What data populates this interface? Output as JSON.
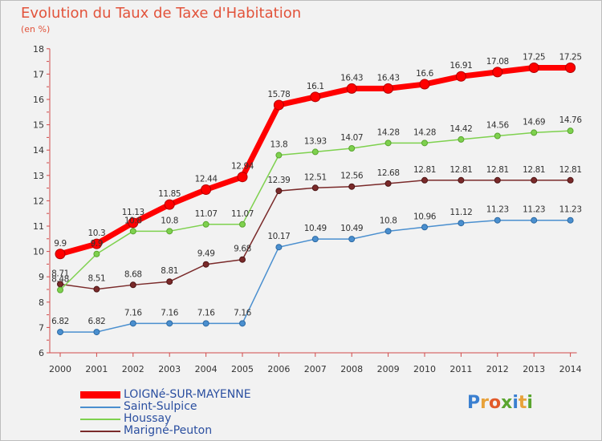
{
  "title": "Evolution du Taux de Taxe d'Habitation",
  "subtitle": "(en %)",
  "logo": "Proxiti",
  "chart_data": {
    "type": "line",
    "title": "Evolution du Taux de Taxe d'Habitation",
    "ylabel": "(en %)",
    "xlabel": "",
    "ylim": [
      6,
      18
    ],
    "yticks": [
      6,
      7,
      8,
      9,
      10,
      11,
      12,
      13,
      14,
      15,
      16,
      17,
      18
    ],
    "grid": false,
    "legend_position": "bottom-left",
    "x": [
      "2000",
      "2001",
      "2002",
      "2003",
      "2004",
      "2005",
      "2006",
      "2007",
      "2008",
      "2009",
      "2010",
      "2011",
      "2012",
      "2013",
      "2014"
    ],
    "series": [
      {
        "name": "LOIGNé-SUR-MAYENNE",
        "color": "#ff0000",
        "values": [
          9.9,
          10.3,
          11.13,
          11.85,
          12.44,
          12.94,
          15.78,
          16.1,
          16.43,
          16.43,
          16.6,
          16.91,
          17.08,
          17.25,
          17.25
        ],
        "labels": [
          "9.9",
          "10.3",
          "11.13",
          "11.85",
          "12.44",
          "12.94",
          "15.78",
          "16.1",
          "16.43",
          "16.43",
          "16.6",
          "16.91",
          "17.08",
          "17.25",
          "17.25"
        ]
      },
      {
        "name": "Saint-Sulpice",
        "color": "#4a8fcf",
        "values": [
          6.82,
          6.82,
          7.16,
          7.16,
          7.16,
          7.16,
          10.17,
          10.49,
          10.49,
          10.8,
          10.96,
          11.12,
          11.23,
          11.23,
          11.23
        ],
        "labels": [
          "6.82",
          "6.82",
          "7.16",
          "7.16",
          "7.16",
          "7.16",
          "10.17",
          "10.49",
          "10.49",
          "10.8",
          "10.96",
          "11.12",
          "11.23",
          "11.23",
          "11.23"
        ]
      },
      {
        "name": "Houssay",
        "color": "#7ed14e",
        "values": [
          8.48,
          9.9,
          10.8,
          10.8,
          11.07,
          11.07,
          13.8,
          13.93,
          14.07,
          14.28,
          14.28,
          14.42,
          14.56,
          14.69,
          14.76
        ],
        "labels": [
          "8.48",
          "9.9",
          "10.8",
          "10.8",
          "11.07",
          "11.07",
          "13.8",
          "13.93",
          "14.07",
          "14.28",
          "14.28",
          "14.42",
          "14.56",
          "14.69",
          "14.76"
        ]
      },
      {
        "name": "Marigné-Peuton",
        "color": "#7a2a2a",
        "values": [
          8.71,
          8.51,
          8.68,
          8.81,
          9.49,
          9.68,
          12.39,
          12.51,
          12.56,
          12.68,
          12.81,
          12.81,
          12.81,
          12.81,
          12.81
        ],
        "labels": [
          "8.71",
          "8.51",
          "8.68",
          "8.81",
          "9.49",
          "9.68",
          "12.39",
          "12.51",
          "12.56",
          "12.68",
          "12.81",
          "12.81",
          "12.81",
          "12.81",
          "12.81"
        ]
      }
    ]
  }
}
